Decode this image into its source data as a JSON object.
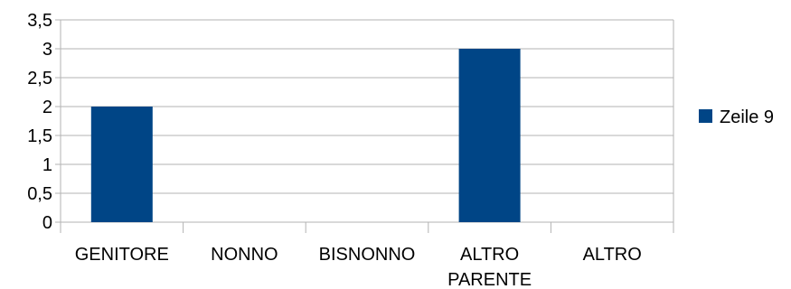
{
  "chart_data": {
    "type": "bar",
    "categories": [
      "GENITORE",
      "NONNO",
      "BISNONNO",
      "ALTRO\nPARENTE",
      "ALTRO"
    ],
    "series": [
      {
        "name": "Zeile 9",
        "values": [
          2,
          0,
          0,
          3,
          0
        ],
        "color": "#004586"
      }
    ],
    "ylim": [
      0,
      3.5
    ],
    "yticks": [
      "0",
      "0,5",
      "1",
      "1,5",
      "2",
      "2,5",
      "3",
      "3,5"
    ],
    "grid": true,
    "legend": "right",
    "title": "",
    "xlabel": "",
    "ylabel": ""
  },
  "colors": {
    "grid": "#b3b3b3",
    "axis": "#b3b3b3"
  }
}
